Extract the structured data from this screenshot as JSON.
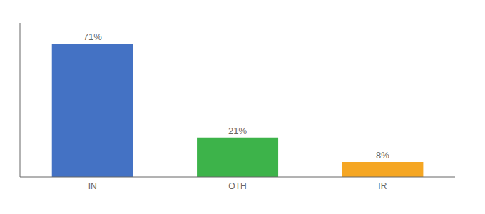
{
  "chart_data": {
    "type": "bar",
    "categories": [
      "IN",
      "OTH",
      "IR"
    ],
    "values": [
      71,
      21,
      8
    ],
    "value_labels": [
      "71%",
      "21%",
      "8%"
    ],
    "colors": [
      "#4472c4",
      "#3db34a",
      "#f5a623"
    ],
    "ylim": [
      0,
      82
    ],
    "data_labels": true,
    "tick_labels": "x",
    "grid": false
  }
}
